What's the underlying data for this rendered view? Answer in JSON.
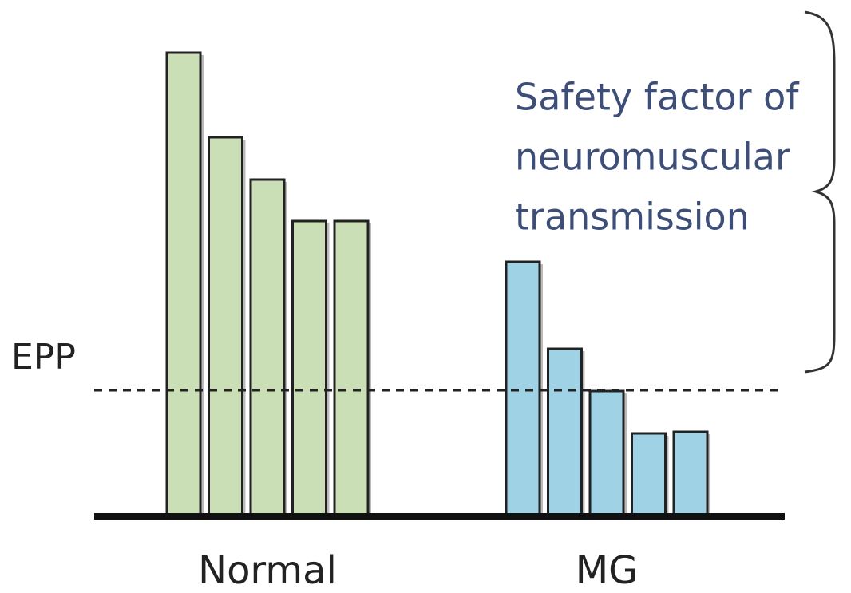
{
  "chart_data": {
    "type": "bar",
    "groups": [
      {
        "name": "Normal",
        "color": "#cadfb6",
        "values": [
          579,
          473,
          420,
          368,
          368
        ]
      },
      {
        "name": "MG",
        "color": "#9fd2e4",
        "values": [
          317,
          208,
          155,
          102,
          104
        ]
      }
    ],
    "ylim": [
      0,
      600
    ],
    "threshold": {
      "label": "EPP",
      "value": 156
    },
    "annotation": [
      "Safety factor of",
      "neuromuscular",
      "transmission"
    ]
  }
}
